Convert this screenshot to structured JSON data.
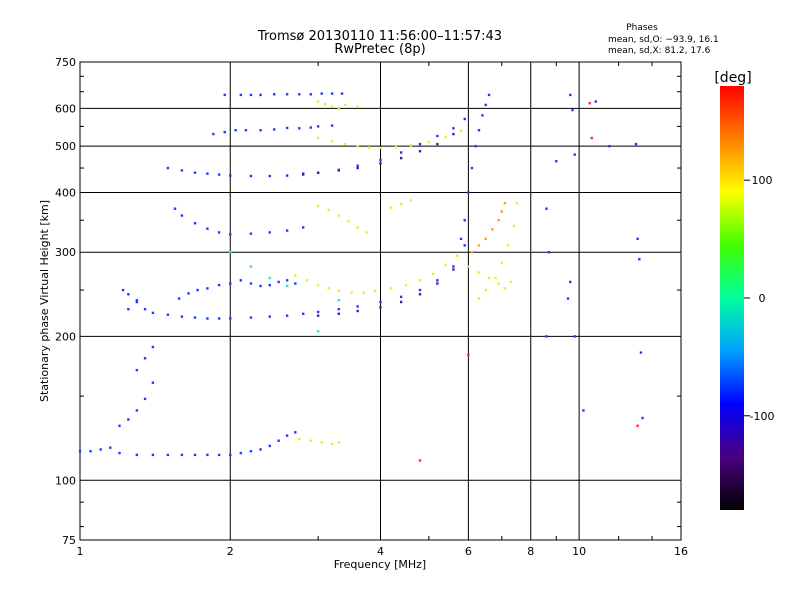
{
  "chart_data": {
    "type": "scatter",
    "title": "Tromsø 20130110 11:56:00–11:57:43",
    "subtitle": "RwPretec (8p)",
    "xlabel": "Frequency [MHz]",
    "ylabel": "Stationary phase Virtual Height [km]",
    "x_scale": "log",
    "y_scale": "log",
    "xlim": [
      1,
      16
    ],
    "ylim": [
      75,
      750
    ],
    "x_ticks": [
      1,
      2,
      4,
      6,
      8,
      10,
      16
    ],
    "y_ticks": [
      75,
      100,
      200,
      300,
      400,
      500,
      600,
      750
    ],
    "x_tick_labels": [
      "1",
      "2",
      "4",
      "6",
      "8",
      "10",
      "16"
    ],
    "y_tick_labels": [
      "75",
      "100",
      "200",
      "300",
      "400",
      "500",
      "600",
      "750"
    ],
    "grid": true,
    "legend": {
      "title": "Phases",
      "lines": [
        "mean, sd,O: −93.9, 16.1",
        "mean, sd,X: 81.2, 17.6"
      ]
    },
    "colorbar": {
      "label": "[deg]",
      "range": [
        -180,
        180
      ],
      "ticks": [
        100,
        0,
        -100
      ],
      "tick_labels": [
        "100",
        "0",
        "-100"
      ],
      "colormap": [
        "#000000",
        "#4a0080",
        "#0000ff",
        "#00a0ff",
        "#00ffa0",
        "#40ff00",
        "#ffff00",
        "#ff8000",
        "#ff0000"
      ]
    },
    "series": [
      {
        "color": "#1a3cff",
        "x": [
          1.0,
          1.05,
          1.1,
          1.15,
          1.2,
          1.3,
          1.4,
          1.5,
          1.6,
          1.7,
          1.8,
          1.9,
          2.0,
          2.1,
          2.2,
          2.3,
          2.4,
          2.5,
          2.6,
          2.7,
          1.2,
          1.25,
          1.3,
          1.35,
          1.4,
          1.3,
          1.35,
          1.4,
          1.25,
          1.3,
          1.22,
          1.25,
          1.3,
          1.35,
          1.4,
          1.5,
          1.6,
          1.7,
          1.8,
          1.9,
          2.0,
          2.2,
          2.4,
          2.6,
          2.8,
          3.0,
          3.3,
          3.6,
          4.0,
          4.4,
          4.8,
          5.2,
          5.6,
          5.9,
          1.55,
          1.6,
          1.7,
          1.8,
          1.9,
          2.0,
          2.2,
          2.4,
          2.6,
          2.8,
          1.58,
          1.65,
          1.72,
          1.8,
          1.9,
          2.0,
          2.1,
          2.2,
          2.3,
          2.4,
          2.5,
          2.6,
          2.7,
          1.5,
          1.6,
          1.7,
          1.8,
          1.9,
          2.0,
          2.2,
          2.4,
          2.6,
          2.8,
          3.0,
          3.3,
          3.6,
          4.0,
          4.4,
          4.8,
          5.2,
          5.6,
          5.9,
          1.85,
          1.95,
          2.05,
          2.15,
          2.3,
          2.45,
          2.6,
          2.75,
          2.9,
          3.0,
          3.2,
          1.95,
          2.1,
          2.2,
          2.3,
          2.45,
          2.6,
          2.75,
          2.9,
          3.05,
          3.2,
          3.35,
          5.8,
          5.9,
          6.0,
          6.1,
          6.2,
          6.3,
          6.4,
          6.5,
          6.6
        ],
        "y": [
          115,
          115,
          116,
          117,
          114,
          113,
          113,
          113,
          113,
          113,
          113,
          113,
          113,
          114,
          115,
          116,
          118,
          121,
          124,
          126,
          130,
          134,
          140,
          148,
          160,
          170,
          180,
          190,
          228,
          238,
          250,
          245,
          236,
          228,
          224,
          222,
          220,
          219,
          218,
          218,
          218,
          219,
          220,
          221,
          223,
          225,
          228,
          231,
          236,
          242,
          250,
          262,
          280,
          310,
          370,
          358,
          345,
          336,
          330,
          327,
          328,
          330,
          333,
          338,
          240,
          246,
          250,
          252,
          256,
          258,
          262,
          258,
          255,
          256,
          260,
          262,
          258,
          450,
          445,
          440,
          438,
          436,
          434,
          433,
          433,
          434,
          436,
          440,
          446,
          455,
          468,
          485,
          505,
          525,
          545,
          570,
          530,
          535,
          540,
          540,
          540,
          542,
          546,
          545,
          547,
          550,
          552,
          640,
          640,
          640,
          640,
          642,
          642,
          642,
          642,
          644,
          644,
          644,
          320,
          350,
          400,
          450,
          500,
          540,
          580,
          610,
          640
        ]
      },
      {
        "color": "#4a1a9a",
        "x": [
          2.8,
          3.0,
          3.3,
          3.6,
          4.0,
          4.4,
          4.8,
          5.2,
          5.6,
          3.0,
          3.3,
          3.6,
          4.0,
          4.4,
          4.8,
          5.2,
          5.6
        ],
        "y": [
          438,
          440,
          445,
          450,
          460,
          472,
          488,
          505,
          530,
          221,
          223,
          226,
          230,
          236,
          245,
          258,
          276
        ]
      },
      {
        "color": "#e6f02a",
        "x": [
          2.7,
          2.85,
          3.0,
          3.15,
          3.3,
          3.5,
          3.7,
          3.9,
          4.2,
          4.5,
          4.8,
          5.1,
          5.4,
          5.7,
          6.0,
          6.3,
          6.6,
          6.9,
          7.1,
          3.0,
          3.2,
          3.4,
          3.6,
          3.8,
          4.0,
          4.3,
          4.6,
          5.0,
          5.4,
          5.8,
          3.0,
          3.1,
          3.2,
          3.3,
          3.4,
          3.6,
          4.2,
          4.4,
          4.6,
          3.0,
          3.15,
          3.3,
          3.45,
          3.6,
          3.75,
          6.3,
          6.5,
          6.8,
          7.0,
          7.2,
          7.4,
          7.5,
          7.3,
          2.75,
          2.9,
          3.05,
          3.2,
          3.3
        ],
        "y": [
          268,
          262,
          256,
          252,
          249,
          247,
          247,
          249,
          252,
          256,
          262,
          270,
          282,
          295,
          280,
          272,
          265,
          258,
          252,
          520,
          512,
          505,
          500,
          497,
          496,
          498,
          502,
          510,
          522,
          538,
          620,
          612,
          605,
          598,
          610,
          605,
          372,
          378,
          385,
          375,
          368,
          358,
          348,
          338,
          330,
          240,
          250,
          265,
          285,
          310,
          340,
          380,
          260,
          122,
          121,
          120,
          119,
          120
        ]
      },
      {
        "color": "#ffa020",
        "x": [
          6.1,
          6.3,
          6.5,
          6.7,
          6.9,
          7.0,
          7.1
        ],
        "y": [
          300,
          310,
          320,
          335,
          350,
          365,
          380
        ]
      },
      {
        "color": "#30e0e0",
        "x": [
          2.0,
          2.2,
          2.4,
          2.6,
          3.0,
          3.3
        ],
        "y": [
          300,
          280,
          265,
          255,
          205,
          238
        ]
      },
      {
        "color": "#1a3cff",
        "x": [
          9.6,
          9.7,
          9.8,
          9.6,
          9.5,
          9.8,
          10.2,
          10.8,
          11.5,
          13.0,
          13.1,
          13.2,
          13.3,
          13.4,
          8.6,
          8.7,
          8.6,
          9.0
        ],
        "y": [
          640,
          595,
          480,
          260,
          240,
          200,
          140,
          620,
          500,
          505,
          320,
          290,
          185,
          135,
          370,
          300,
          200,
          465
        ]
      },
      {
        "color": "#ff2a2a",
        "x": [
          10.5,
          10.6,
          13.1,
          6.0,
          4.8
        ],
        "y": [
          615,
          520,
          130,
          183,
          110
        ]
      }
    ]
  }
}
